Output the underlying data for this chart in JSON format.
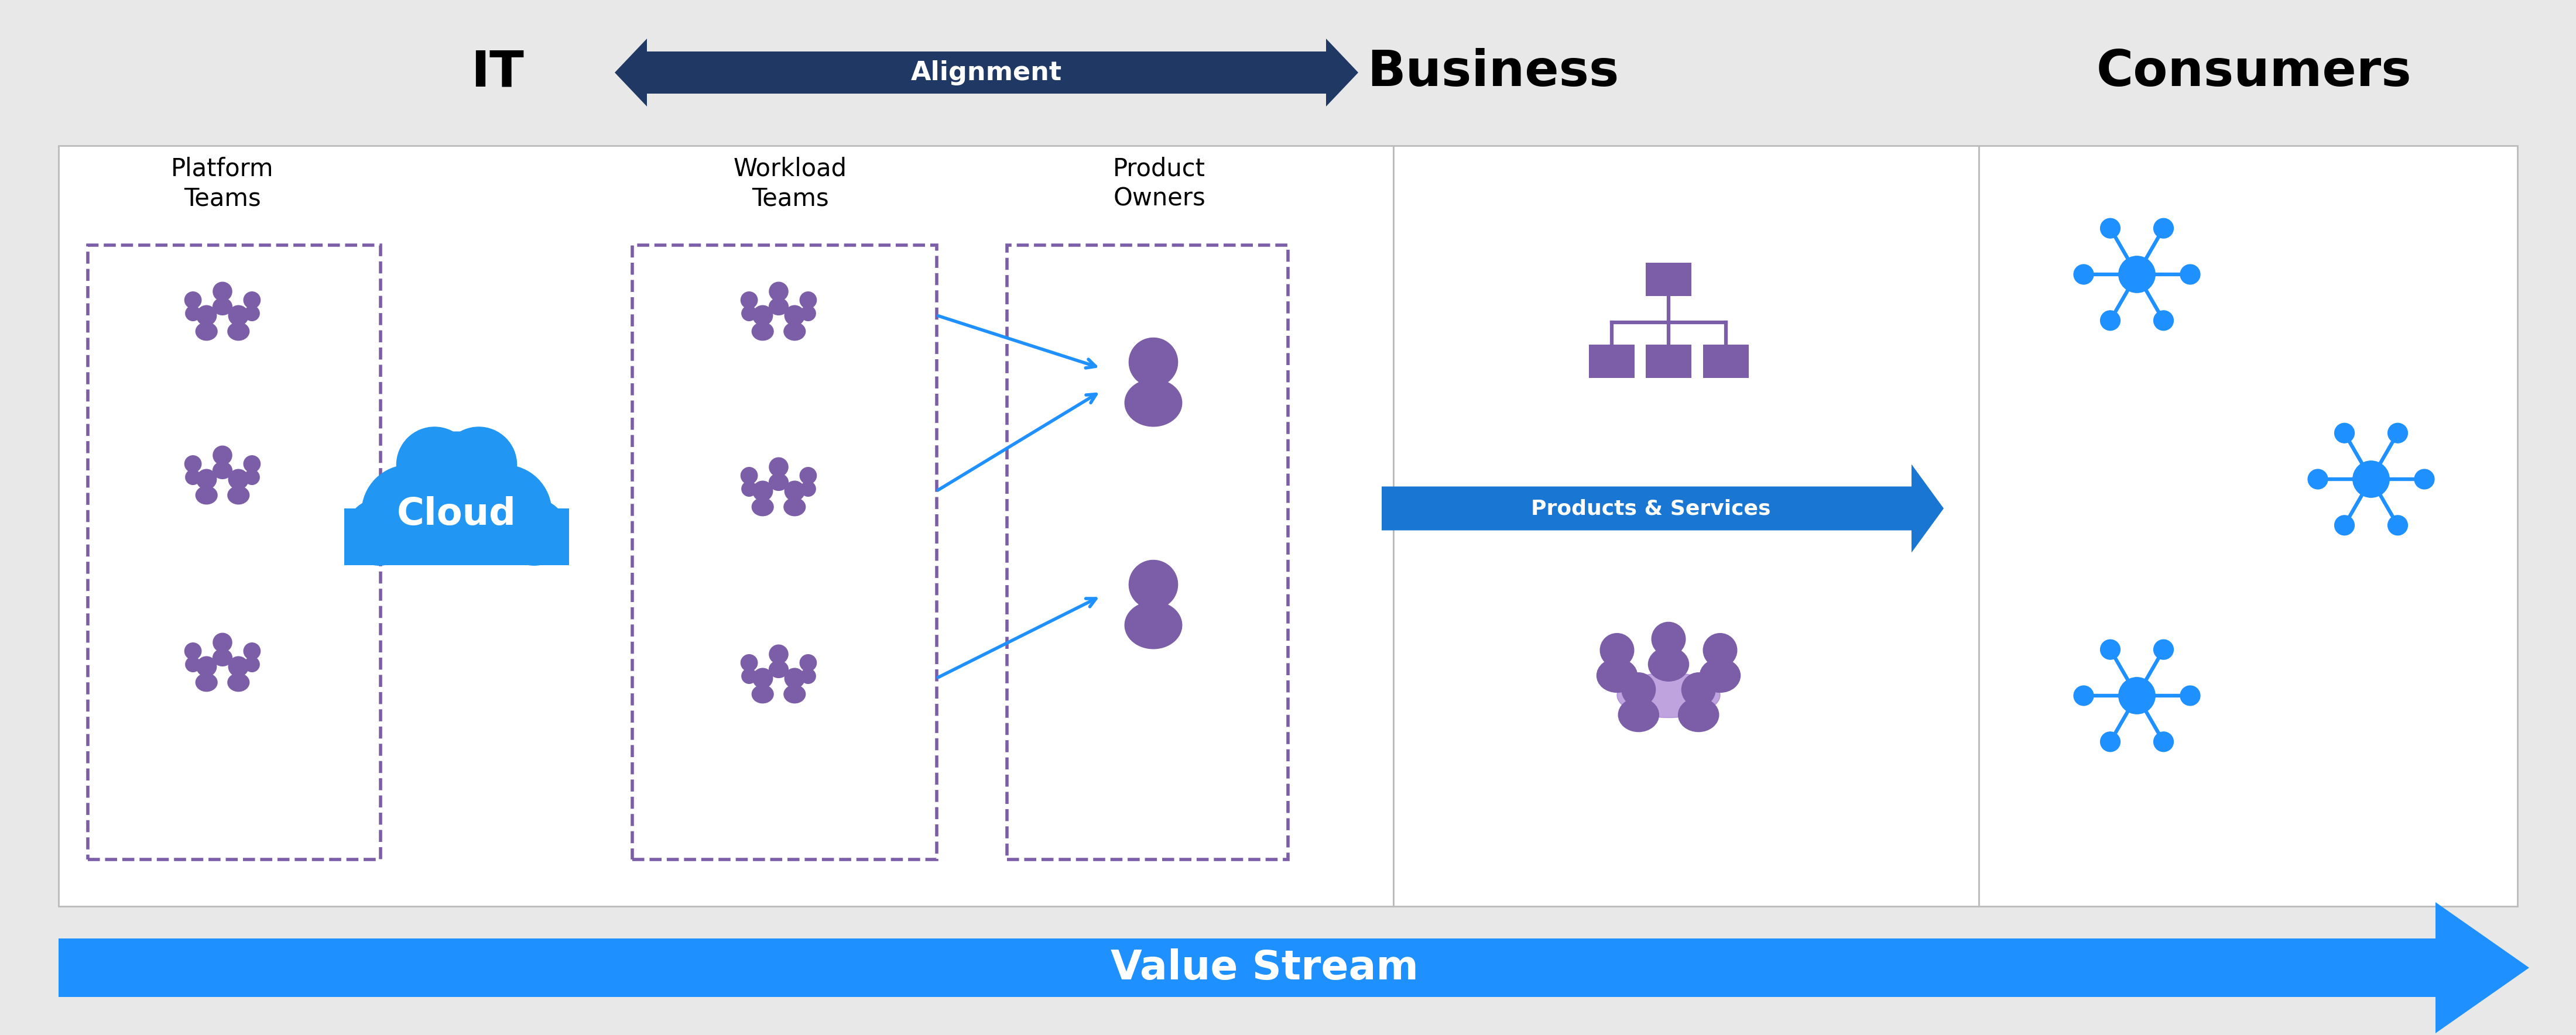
{
  "bg_color": "#E8E8E8",
  "white": "#FFFFFF",
  "dark_navy": "#1F3864",
  "purple": "#7B5EA7",
  "purple_light": "#9370DB",
  "cloud_blue": "#2196F3",
  "arrow_blue": "#1E90FF",
  "products_blue": "#1976D2",
  "gray_border": "#BBBBBB",
  "title_it": "IT",
  "title_business": "Business",
  "title_consumers": "Consumers",
  "alignment_text": "Alignment",
  "platform_teams": "Platform\nTeams",
  "workload_teams": "Workload\nTeams",
  "product_owners": "Product\nOwners",
  "products_services": "Products & Services",
  "value_stream": "Value Stream",
  "fig_width": 44.0,
  "fig_height": 17.69
}
